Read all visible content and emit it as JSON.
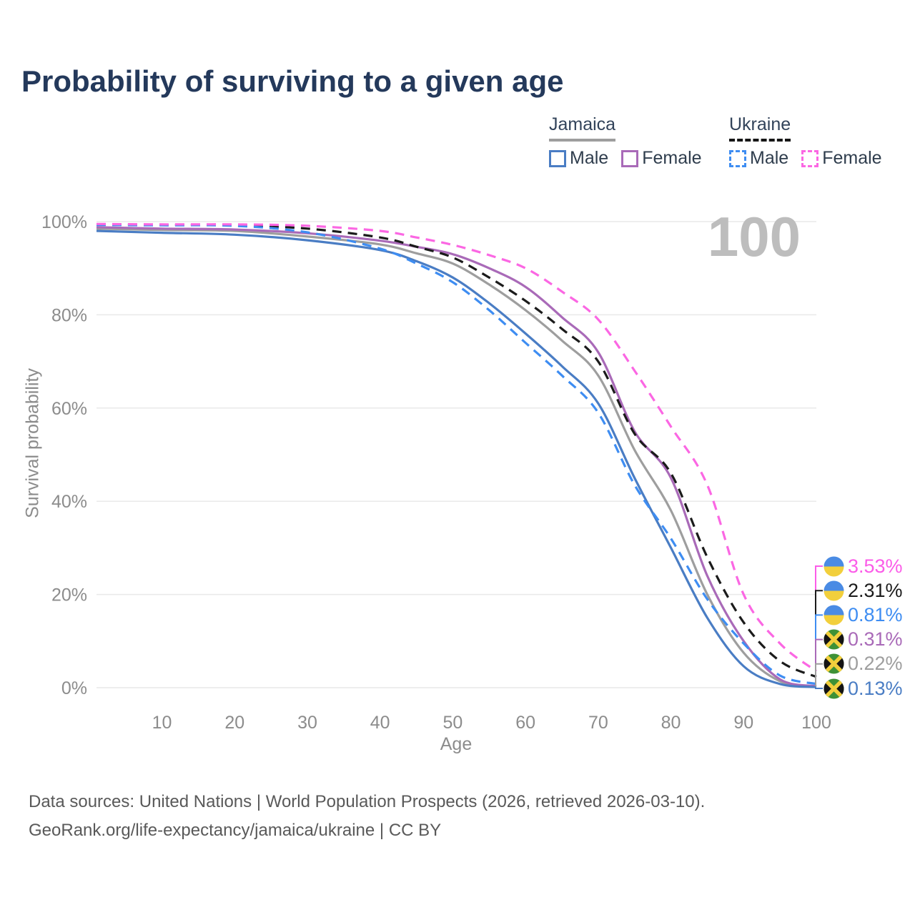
{
  "title": "Probability of surviving to a given age",
  "watermark": {
    "text": "100"
  },
  "legend": {
    "groups": [
      {
        "country": "Jamaica",
        "line_style": "solid",
        "underline_color": "#9e9e9e",
        "items": [
          {
            "label": "Male",
            "color": "#4a7dc4"
          },
          {
            "label": "Female",
            "color": "#a96ab8"
          }
        ]
      },
      {
        "country": "Ukraine",
        "line_style": "dashed",
        "underline_color": "#161616",
        "items": [
          {
            "label": "Male",
            "color": "#3e8df2"
          },
          {
            "label": "Female",
            "color": "#fb67e3"
          }
        ]
      }
    ]
  },
  "chart_data": {
    "type": "line",
    "x_label": "Age",
    "y_label": "Survival probability",
    "x_range": [
      1,
      100
    ],
    "y_range_percent": [
      0,
      100
    ],
    "grid": "horizontal-only",
    "x_ticks": [
      {
        "label": "10",
        "value": 10
      },
      {
        "label": "20",
        "value": 20
      },
      {
        "label": "30",
        "value": 30
      },
      {
        "label": "40",
        "value": 40
      },
      {
        "label": "50",
        "value": 50
      },
      {
        "label": "60",
        "value": 60
      },
      {
        "label": "70",
        "value": 70
      },
      {
        "label": "80",
        "value": 80
      },
      {
        "label": "90",
        "value": 90
      },
      {
        "label": "100",
        "value": 100
      }
    ],
    "y_ticks": [
      {
        "label": "0%",
        "value": 0
      },
      {
        "label": "20%",
        "value": 20
      },
      {
        "label": "40%",
        "value": 40
      },
      {
        "label": "60%",
        "value": 60
      },
      {
        "label": "80%",
        "value": 80
      },
      {
        "label": "100%",
        "value": 100
      }
    ],
    "ages": [
      1,
      10,
      20,
      30,
      40,
      45,
      50,
      55,
      60,
      65,
      70,
      75,
      80,
      85,
      90,
      95,
      100
    ],
    "series": [
      {
        "id": "jamaica-total",
        "name": "Jamaica (both sexes)",
        "color": "#9e9e9e",
        "dashed": false,
        "values": [
          98.5,
          98.2,
          98.0,
          96.8,
          95.1,
          93.2,
          91.0,
          86.5,
          81.0,
          74.5,
          67.0,
          51.0,
          38.0,
          20.0,
          7.5,
          1.4,
          0.22
        ]
      },
      {
        "id": "jamaica-female",
        "name": "Jamaica Female",
        "color": "#a96ab8",
        "dashed": false,
        "values": [
          98.8,
          98.5,
          98.3,
          97.5,
          95.9,
          94.6,
          93.0,
          90.0,
          86.0,
          79.5,
          72.0,
          55.0,
          45.0,
          24.0,
          10.0,
          1.8,
          0.31
        ]
      },
      {
        "id": "jamaica-male",
        "name": "Jamaica Male",
        "color": "#4a7dc4",
        "dashed": false,
        "values": [
          98.0,
          97.6,
          97.2,
          96.0,
          93.9,
          91.5,
          88.0,
          82.5,
          76.0,
          69.0,
          61.0,
          45.0,
          30.0,
          15.0,
          4.6,
          0.8,
          0.13
        ]
      },
      {
        "id": "ukraine-total",
        "name": "Ukraine (both sexes)",
        "color": "#1b1b1b",
        "dashed": true,
        "values": [
          99.4,
          99.3,
          99.2,
          98.5,
          96.6,
          94.6,
          92.3,
          88.0,
          83.0,
          77.0,
          70.0,
          54.5,
          46.0,
          28.0,
          14.0,
          5.7,
          2.31
        ]
      },
      {
        "id": "ukraine-male",
        "name": "Ukraine Male",
        "color": "#3e8df2",
        "dashed": true,
        "values": [
          99.3,
          99.2,
          99.1,
          97.7,
          94.2,
          91.0,
          87.0,
          81.0,
          74.0,
          67.0,
          59.0,
          43.5,
          32.0,
          19.0,
          9.5,
          2.6,
          0.81
        ]
      },
      {
        "id": "ukraine-female",
        "name": "Ukraine Female",
        "color": "#fb67e3",
        "dashed": true,
        "values": [
          99.5,
          99.4,
          99.4,
          99.1,
          98.0,
          96.6,
          95.0,
          92.8,
          90.0,
          85.0,
          79.0,
          68.0,
          56.0,
          43.5,
          20.0,
          9.5,
          3.53
        ]
      }
    ],
    "end_labels": [
      {
        "series": "ukraine-female",
        "text": "3.53%",
        "color": "#fb5ce8",
        "flag": "ukraine"
      },
      {
        "series": "ukraine-total",
        "text": "2.31%",
        "color": "#1b1b1b",
        "flag": "ukraine"
      },
      {
        "series": "ukraine-male",
        "text": "0.81%",
        "color": "#3e8df2",
        "flag": "ukraine"
      },
      {
        "series": "jamaica-female",
        "text": "0.31%",
        "color": "#a96ab8",
        "flag": "jamaica"
      },
      {
        "series": "jamaica-total",
        "text": "0.22%",
        "color": "#9e9e9e",
        "flag": "jamaica"
      },
      {
        "series": "jamaica-male",
        "text": "0.13%",
        "color": "#4a7dc4",
        "flag": "jamaica"
      }
    ],
    "flag_colors": {
      "ukraine": {
        "top": "#4a8be4",
        "bottom": "#f2cf3c"
      },
      "jamaica": {
        "green": "#3e9136",
        "black": "#141414",
        "gold": "#f2cf3c"
      }
    },
    "colors": {
      "gridline": "#e9e9e9",
      "tick_text": "#8c8c8c"
    }
  },
  "footer": {
    "line1": "Data sources: United Nations | World Population Prospects (2026, retrieved 2026-03-10).",
    "line2": "GeoRank.org/life-expectancy/jamaica/ukraine | CC BY"
  }
}
